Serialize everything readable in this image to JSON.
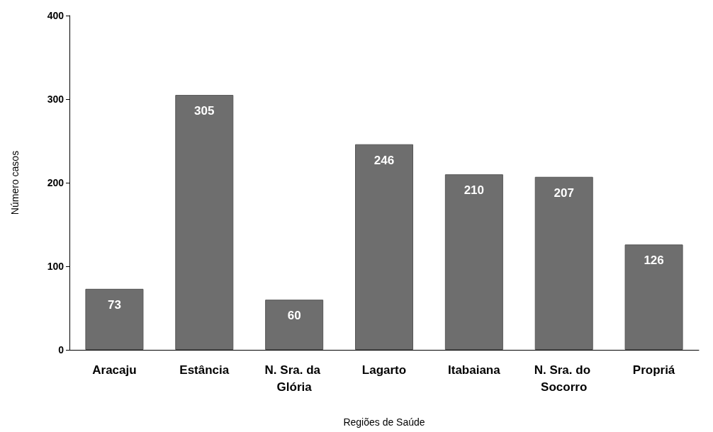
{
  "chart_data": {
    "type": "bar",
    "xlabel": "Regiões de Saúde",
    "ylabel": "Número casos",
    "categories": [
      "Aracaju",
      "Estância",
      "N. Sra. da Glória",
      "Lagarto",
      "Itabaiana",
      "N. Sra. do Socorro",
      "Propriá"
    ],
    "values": [
      73,
      305,
      60,
      246,
      210,
      207,
      126
    ],
    "color": "#6e6e6e",
    "ylim": [
      0,
      400
    ],
    "yticks": [
      0,
      100,
      200,
      300,
      400
    ],
    "grid": false,
    "data_labels": true
  }
}
